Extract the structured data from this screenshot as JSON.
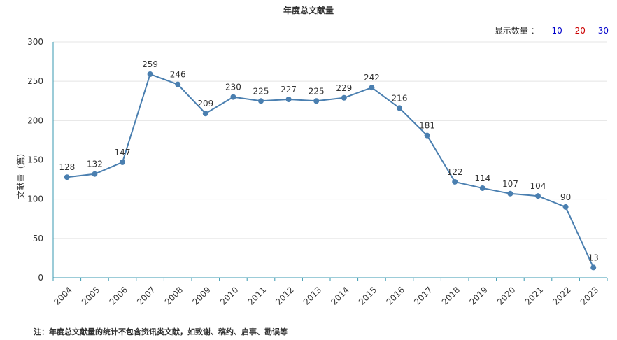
{
  "chart_title": "年度总文献量",
  "switcher": {
    "label": "显示数量 ：",
    "options": [
      {
        "label": "10",
        "color": "#0000cc"
      },
      {
        "label": "20",
        "color": "#cc0000"
      },
      {
        "label": "30",
        "color": "#0000cc"
      }
    ]
  },
  "footnote": "注：年度总文献量的统计不包含资讯类文献，如致谢、稿约、启事、勘误等",
  "colors": {
    "line": "#4a7fb0",
    "axis": "#3a9ab0",
    "grid": "#e4e4e4"
  },
  "chart_data": {
    "type": "line",
    "title": "年度总文献量",
    "xlabel": "",
    "ylabel": "文献量（篇）",
    "ylim": [
      0,
      300
    ],
    "yticks": [
      0,
      50,
      100,
      150,
      200,
      250,
      300
    ],
    "grid": true,
    "categories": [
      "2004",
      "2005",
      "2006",
      "2007",
      "2008",
      "2009",
      "2010",
      "2011",
      "2012",
      "2013",
      "2014",
      "2015",
      "2016",
      "2017",
      "2018",
      "2019",
      "2020",
      "2021",
      "2022",
      "2023"
    ],
    "series": [
      {
        "values": [
          128,
          132,
          147,
          259,
          246,
          209,
          230,
          225,
          227,
          225,
          229,
          242,
          216,
          181,
          122,
          114,
          107,
          104,
          90,
          13
        ]
      }
    ]
  }
}
